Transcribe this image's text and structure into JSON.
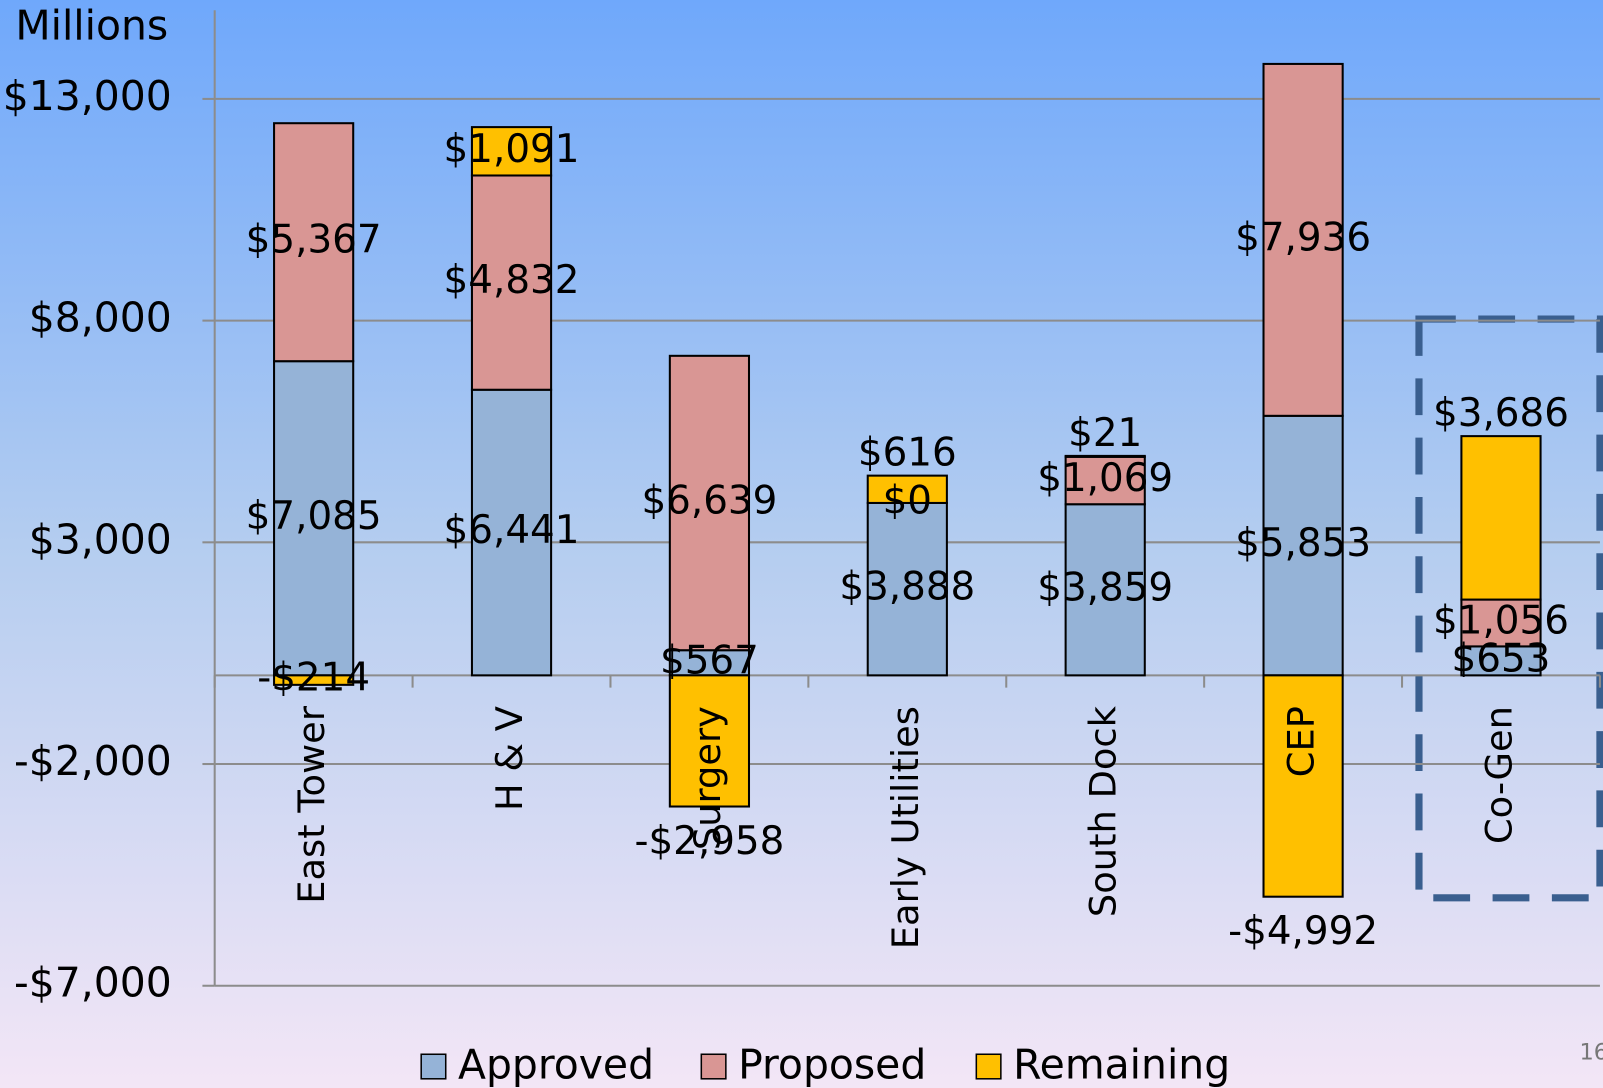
{
  "chart_data": {
    "type": "bar",
    "stacked": true,
    "y_axis_title": "Millions",
    "page_number": "16",
    "categories": [
      "East Tower",
      "H & V",
      "Surgery",
      "Early Utilities",
      "South Dock",
      "CEP",
      "Co-Gen"
    ],
    "series": [
      {
        "name": "Approved",
        "color": "#95b3d7",
        "values": [
          7085,
          6441,
          567,
          3888,
          3859,
          5853,
          653
        ],
        "value_labels": [
          "$7,085",
          "$6,441",
          "$567",
          "$3,888",
          "$3,859",
          "$5,853",
          "$653"
        ]
      },
      {
        "name": "Proposed",
        "color": "#d99694",
        "values": [
          5367,
          4832,
          6639,
          0,
          1069,
          7936,
          1056
        ],
        "value_labels": [
          "$5,367",
          "$4,832",
          "$6,639",
          "$0",
          "$1,069",
          "$7,936",
          "$1,056"
        ]
      },
      {
        "name": "Remaining",
        "color": "#ffc000",
        "values": [
          -214,
          1091,
          -2958,
          616,
          21,
          -4992,
          3686
        ],
        "value_labels": [
          "-$214",
          "$1,091",
          "-$2,958",
          "$616",
          "$21",
          "-$4,992",
          "$3,686"
        ]
      }
    ],
    "ylim": [
      -7000,
      15000
    ],
    "yticks": [
      {
        "value": -7000,
        "label": "-$7,000"
      },
      {
        "value": -2000,
        "label": "-$2,000"
      },
      {
        "value": 3000,
        "label": "$3,000"
      },
      {
        "value": 8000,
        "label": "$8,000"
      },
      {
        "value": 13000,
        "label": "$13,000"
      }
    ],
    "grid": true,
    "legend": "bottom"
  }
}
